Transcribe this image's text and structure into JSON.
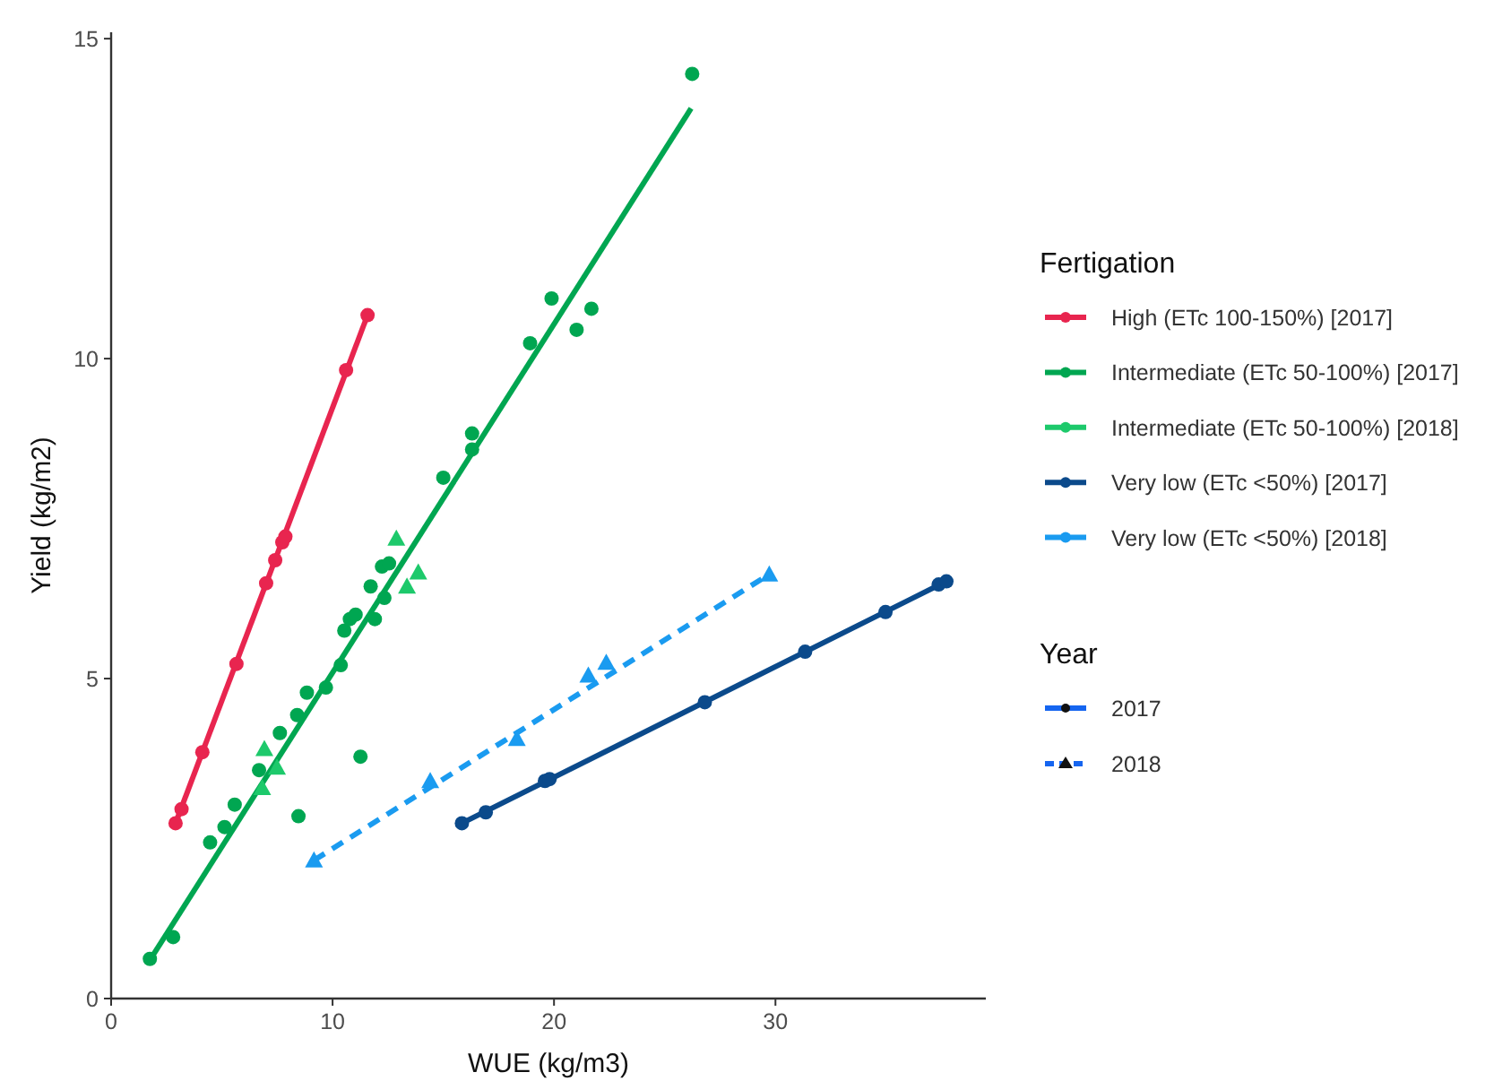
{
  "chart_data": {
    "type": "scatter",
    "xlabel": "WUE (kg/m3)",
    "ylabel": "Yield (kg/m2)",
    "legend_title": "Fertigation",
    "legend": "right",
    "grid": false,
    "xlim": [
      0,
      39.5
    ],
    "ylim": [
      0,
      15.1
    ],
    "xticks": [
      0,
      10,
      20,
      30
    ],
    "yticks": [
      0,
      5,
      10,
      15
    ],
    "annotations": [
      "Year",
      "2017",
      "2018"
    ],
    "series": [
      {
        "name": "High (ETc 100-150%) [2017]",
        "marker": "circle",
        "color": "#e8254f",
        "x": [
          2.91,
          3.18,
          4.12,
          5.66,
          7.0,
          7.41,
          7.73,
          7.87,
          10.61,
          11.58
        ],
        "values": [
          2.74,
          2.96,
          3.85,
          5.23,
          6.49,
          6.85,
          7.13,
          7.22,
          9.82,
          10.68
        ]
      },
      {
        "name": "Intermediate (ETc 50-100%) [2017]",
        "marker": "circle",
        "color": "#00a651",
        "x": [
          1.75,
          2.8,
          4.47,
          5.12,
          5.58,
          8.46,
          6.68,
          7.62,
          8.4,
          8.84,
          9.7,
          11.26,
          10.37,
          10.53,
          10.78,
          11.04,
          11.72,
          11.91,
          12.23,
          12.55,
          12.34,
          15.0,
          16.3,
          16.3,
          18.92,
          19.89,
          21.02,
          21.69,
          26.24
        ],
        "values": [
          0.62,
          0.96,
          2.44,
          2.68,
          3.03,
          2.85,
          3.57,
          4.15,
          4.43,
          4.78,
          4.86,
          3.78,
          5.21,
          5.75,
          5.93,
          6.0,
          6.44,
          5.93,
          6.75,
          6.8,
          6.26,
          8.14,
          8.58,
          8.83,
          10.24,
          10.94,
          10.45,
          10.78,
          14.45
        ]
      },
      {
        "name": "Intermediate (ETc 50-100%) [2018]",
        "marker": "triangle",
        "color": "#1dc96b",
        "x": [
          6.92,
          7.49,
          6.82,
          12.88,
          13.87,
          13.36
        ],
        "values": [
          3.9,
          3.61,
          3.29,
          7.19,
          6.66,
          6.44
        ]
      },
      {
        "name": "Very low (ETc <50%) [2017]",
        "marker": "circle",
        "color": "#0b4a8b",
        "x": [
          15.84,
          16.92,
          19.59,
          19.8,
          26.81,
          31.34,
          34.97,
          37.37,
          37.72
        ],
        "values": [
          2.74,
          2.91,
          3.4,
          3.43,
          4.63,
          5.42,
          6.04,
          6.47,
          6.52
        ]
      },
      {
        "name": "Very low (ETc <50%) [2018]",
        "marker": "triangle",
        "color": "#1a9bf0",
        "x": [
          9.16,
          14.41,
          18.32,
          21.55,
          22.36,
          29.72
        ],
        "values": [
          2.16,
          3.4,
          4.06,
          5.05,
          5.25,
          6.63
        ]
      },
      {
        "type": "line",
        "line_style": "solid",
        "color": "#e8254f",
        "x": [
          2.91,
          11.58
        ],
        "values": [
          2.74,
          10.68
        ]
      },
      {
        "type": "line",
        "line_style": "solid",
        "color": "#00a651",
        "x": [
          1.75,
          26.19
        ],
        "values": [
          0.6,
          13.91
        ]
      },
      {
        "type": "line",
        "line_style": "solid",
        "color": "#0b4a8b",
        "x": [
          15.84,
          37.72
        ],
        "values": [
          2.74,
          6.52
        ]
      },
      {
        "type": "line",
        "line_style": "dashed",
        "color": "#1a9bf0",
        "x": [
          9.16,
          29.72
        ],
        "values": [
          2.16,
          6.63
        ]
      }
    ]
  }
}
